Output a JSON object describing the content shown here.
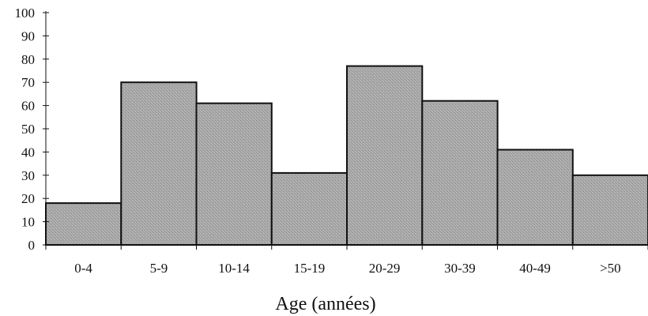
{
  "chart_data": {
    "type": "bar",
    "title": "",
    "xlabel": "Age (années)",
    "ylabel": "",
    "categories": [
      "0-4",
      "5-9",
      "10-14",
      "15-19",
      "20-29",
      "30-39",
      "40-49",
      ">50"
    ],
    "values": [
      18,
      70,
      61,
      31,
      77,
      62,
      41,
      30
    ],
    "ylim": [
      0,
      100
    ],
    "yticks": [
      0,
      10,
      20,
      30,
      40,
      50,
      60,
      70,
      80,
      90,
      100
    ],
    "grid": false,
    "legend": "none",
    "bar_color": "#a9a9a9",
    "bar_edge_color": "#111111"
  }
}
